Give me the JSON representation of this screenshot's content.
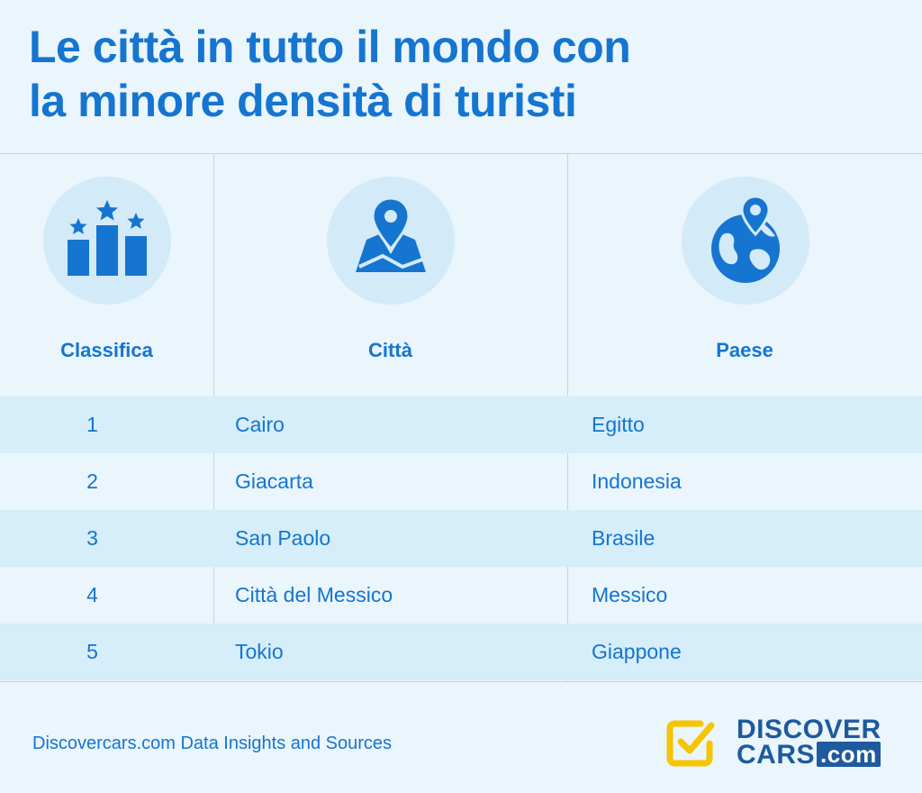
{
  "title_line1": "Le città in tutto il mondo con",
  "title_line2": "la minore densità di turisti",
  "columns": [
    {
      "label": "Classifica",
      "icon": "podium-stars-icon"
    },
    {
      "label": "Città",
      "icon": "map-pin-icon"
    },
    {
      "label": "Paese",
      "icon": "globe-pin-icon"
    }
  ],
  "rows": [
    {
      "rank": "1",
      "city": "Cairo",
      "country": "Egitto"
    },
    {
      "rank": "2",
      "city": "Giacarta",
      "country": "Indonesia"
    },
    {
      "rank": "3",
      "city": "San Paolo",
      "country": "Brasile"
    },
    {
      "rank": "4",
      "city": "Città del Messico",
      "country": "Messico"
    },
    {
      "rank": "5",
      "city": "Tokio",
      "country": "Giappone"
    }
  ],
  "footer": {
    "source": "Discovercars.com Data Insights and Sources",
    "logo_word1": "DISCOVER",
    "logo_word2": "CARS",
    "logo_com": ".com"
  },
  "colors": {
    "background": "#EAF5FC",
    "accent": "#1575D0",
    "row_shade": "#D6EDFA",
    "icon_circle": "#D3EAF8",
    "logo_yellow": "#F6C400",
    "logo_navy": "#1E5A9E"
  }
}
